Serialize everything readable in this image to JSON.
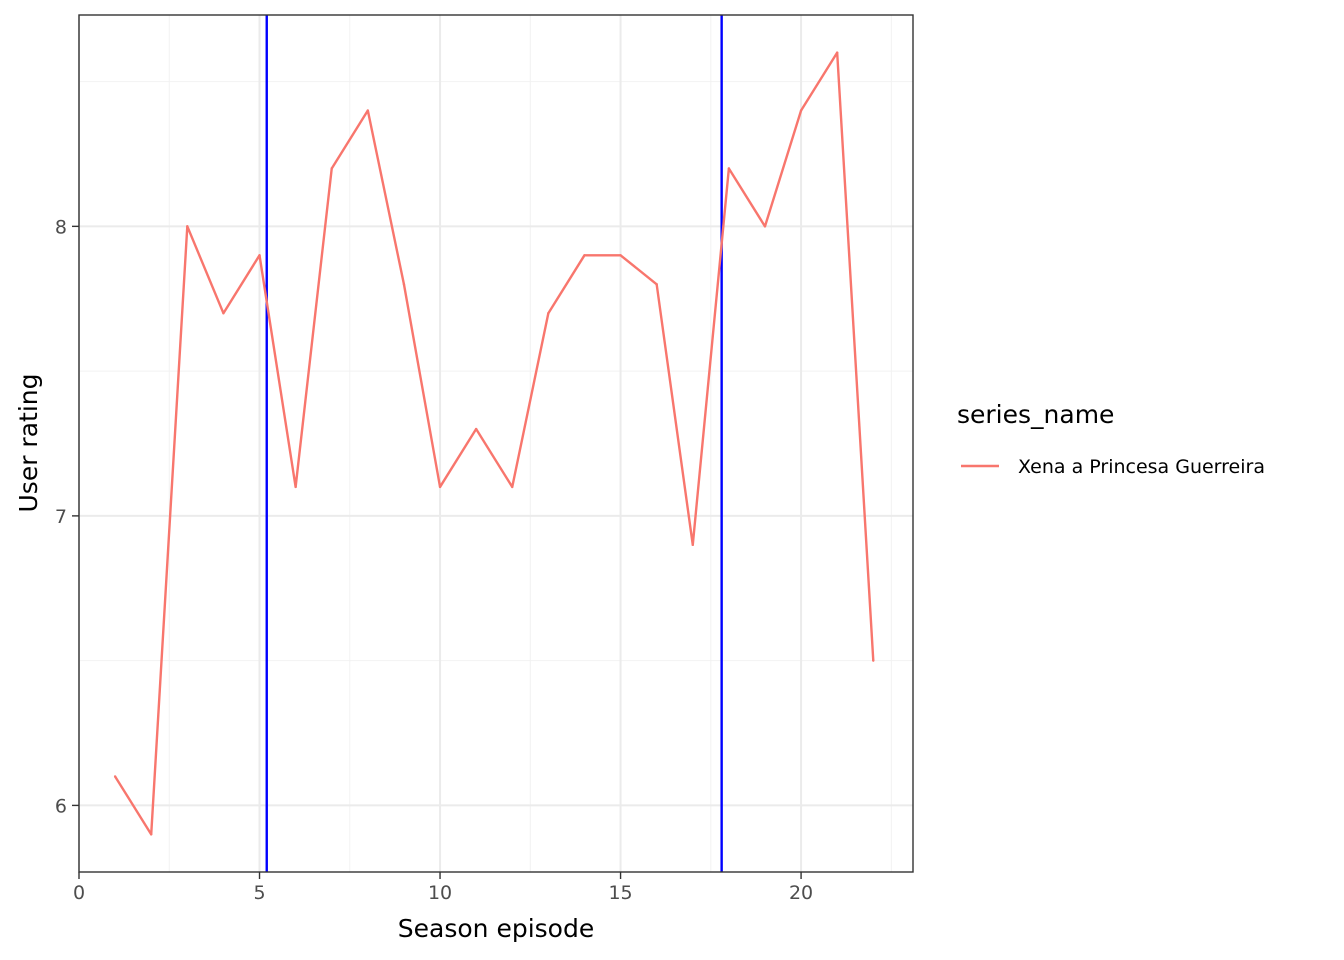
{
  "chart_data": {
    "type": "line",
    "title": "",
    "xlabel": "Season episode",
    "ylabel": "User rating",
    "xlim": [
      0,
      23.1
    ],
    "ylim": [
      5.77,
      8.73
    ],
    "x_ticks": [
      0,
      5,
      10,
      15,
      20
    ],
    "x_tick_labels": [
      "0",
      "5",
      "10",
      "15",
      "20"
    ],
    "x_minor_ticks": [
      2.5,
      7.5,
      12.5,
      17.5,
      22.5
    ],
    "y_ticks": [
      6,
      7,
      8
    ],
    "y_tick_labels": [
      "6",
      "7",
      "8"
    ],
    "y_minor_ticks": [
      6.5,
      7.5,
      8.5
    ],
    "grid": true,
    "legend": {
      "title": "series_name",
      "position": "right"
    },
    "series": [
      {
        "name": "Xena a Princesa Guerreira",
        "color": "#F8766D",
        "x": [
          1,
          2,
          3,
          4,
          5,
          6,
          7,
          8,
          9,
          10,
          11,
          12,
          13,
          14,
          15,
          16,
          17,
          18,
          19,
          20,
          21,
          22
        ],
        "y": [
          6.1,
          5.9,
          8.0,
          7.7,
          7.9,
          7.1,
          8.2,
          8.4,
          7.8,
          7.1,
          7.3,
          7.1,
          7.7,
          7.9,
          7.9,
          7.8,
          6.9,
          8.2,
          8.0,
          8.4,
          8.6,
          6.5
        ]
      }
    ],
    "vertical_lines": [
      {
        "x": 5.2,
        "color": "#0000FF"
      },
      {
        "x": 17.8,
        "color": "#0000FF"
      }
    ]
  }
}
